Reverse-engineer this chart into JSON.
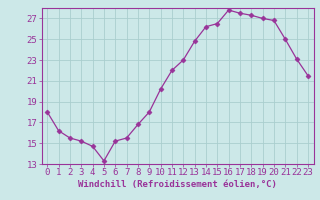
{
  "x": [
    0,
    1,
    2,
    3,
    4,
    5,
    6,
    7,
    8,
    9,
    10,
    11,
    12,
    13,
    14,
    15,
    16,
    17,
    18,
    19,
    20,
    21,
    22,
    23
  ],
  "y": [
    18.0,
    16.2,
    15.5,
    15.2,
    14.7,
    13.3,
    15.2,
    15.5,
    16.8,
    18.0,
    20.2,
    22.0,
    23.0,
    24.8,
    26.2,
    26.5,
    27.8,
    27.5,
    27.3,
    27.0,
    26.8,
    25.0,
    23.1,
    21.5
  ],
  "line_color": "#993399",
  "marker": "D",
  "marker_size": 2.5,
  "background_color": "#cce8e8",
  "grid_color": "#aacece",
  "xlabel": "Windchill (Refroidissement éolien,°C)",
  "xlabel_fontsize": 6.5,
  "tick_fontsize": 6.5,
  "ylim": [
    13,
    28
  ],
  "xlim": [
    -0.5,
    23.5
  ],
  "yticks": [
    13,
    15,
    17,
    19,
    21,
    23,
    25,
    27
  ],
  "xticks": [
    0,
    1,
    2,
    3,
    4,
    5,
    6,
    7,
    8,
    9,
    10,
    11,
    12,
    13,
    14,
    15,
    16,
    17,
    18,
    19,
    20,
    21,
    22,
    23
  ]
}
